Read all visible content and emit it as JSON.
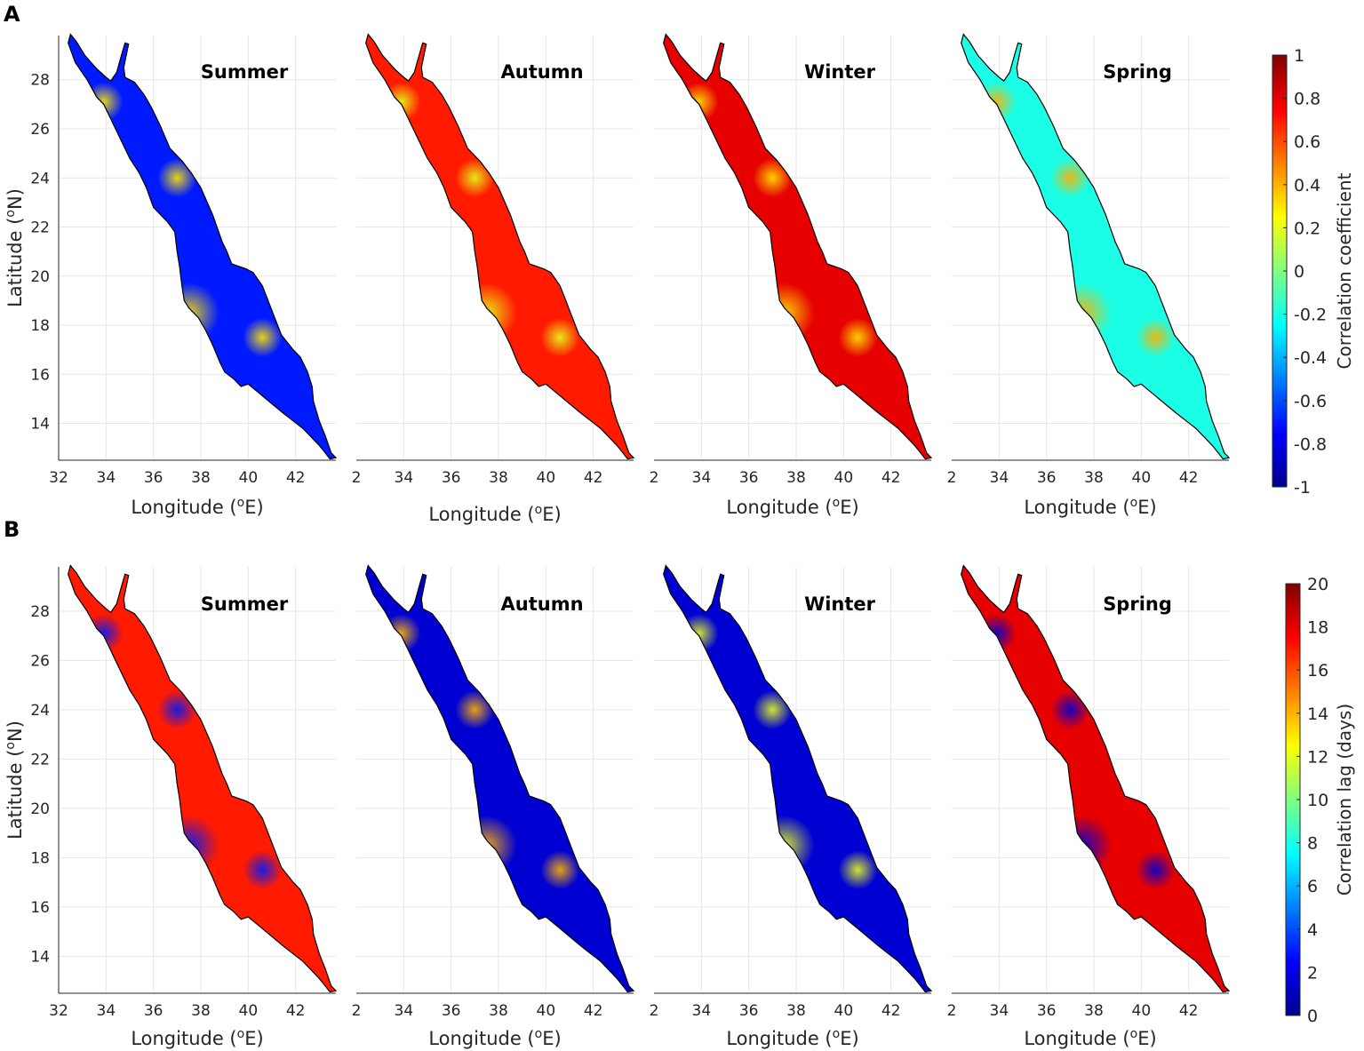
{
  "panel_labels": {
    "A": "A",
    "B": "B"
  },
  "chart_data": [
    {
      "type": "heatmap",
      "panel": "A",
      "description_of_values": "seasonal correlation coefficient map",
      "seasons": [
        {
          "title": "Summer",
          "typical_value": -0.7,
          "hotspot_value": 0.3
        },
        {
          "title": "Autumn",
          "typical_value": 0.7,
          "hotspot_value": 0.2
        },
        {
          "title": "Winter",
          "typical_value": 0.8,
          "hotspot_value": 0.3
        },
        {
          "title": "Spring",
          "typical_value": -0.2,
          "hotspot_value": 0.4
        }
      ],
      "xlabel": "Longitude (°E)",
      "xlabel_base": "Longitude (",
      "xlabel_sup": "o",
      "xlabel_tail": "E)",
      "ylabel": "Latitude (°N)",
      "ylabel_base": "Latitude (",
      "ylabel_sup": "o",
      "ylabel_tail": "N)",
      "xlim": [
        32,
        43.7
      ],
      "ylim": [
        12.5,
        29.8
      ],
      "x_ticks": [
        34,
        36,
        38,
        40,
        42
      ],
      "x_ticks_first": [
        "32",
        "2",
        "2",
        "2"
      ],
      "y_ticks": [
        14,
        16,
        18,
        20,
        22,
        24,
        26,
        28
      ],
      "colorbar": {
        "label": "Correlation coefficient",
        "min": -1,
        "max": 1,
        "ticks": [
          "1",
          "0.8",
          "0.6",
          "0.4",
          "0.2",
          "0",
          "-0.2",
          "-0.4",
          "-0.6",
          "-0.8",
          "-1"
        ],
        "tick_values": [
          1,
          0.8,
          0.6,
          0.4,
          0.2,
          0,
          -0.2,
          -0.4,
          -0.6,
          -0.8,
          -1
        ]
      }
    },
    {
      "type": "heatmap",
      "panel": "B",
      "description_of_values": "seasonal correlation lag map (days)",
      "seasons": [
        {
          "title": "Summer",
          "typical_value": 17,
          "hotspot_value": 3
        },
        {
          "title": "Autumn",
          "typical_value": 1.5,
          "hotspot_value": 14
        },
        {
          "title": "Winter",
          "typical_value": 1.5,
          "hotspot_value": 12
        },
        {
          "title": "Spring",
          "typical_value": 18,
          "hotspot_value": 1.5
        }
      ],
      "xlabel": "Longitude (°E)",
      "xlabel_base": "Longitude (",
      "xlabel_sup": "o",
      "xlabel_tail": "E)",
      "ylabel": "Latitude (°N)",
      "ylabel_base": "Latitude (",
      "ylabel_sup": "o",
      "ylabel_tail": "N)",
      "xlim": [
        32,
        43.7
      ],
      "ylim": [
        12.5,
        29.8
      ],
      "x_ticks": [
        34,
        36,
        38,
        40,
        42
      ],
      "x_ticks_first": [
        "32",
        "2",
        "2",
        "2"
      ],
      "y_ticks": [
        14,
        16,
        18,
        20,
        22,
        24,
        26,
        28
      ],
      "colorbar": {
        "label": "Correlation lag (days)",
        "min": 0,
        "max": 20,
        "ticks": [
          "20",
          "18",
          "16",
          "14",
          "12",
          "10",
          "8",
          "6",
          "4",
          "2",
          "0"
        ],
        "tick_values": [
          20,
          18,
          16,
          14,
          12,
          10,
          8,
          6,
          4,
          2,
          0
        ]
      }
    }
  ],
  "colors": {
    "jet": [
      "#00008f",
      "#0000ff",
      "#0080ff",
      "#00ffff",
      "#80ff80",
      "#ffff00",
      "#ff8000",
      "#ff0000",
      "#800000"
    ],
    "grid": "#e6e6e6",
    "axis": "#262626",
    "text": "#262626",
    "coast": "#000000"
  }
}
